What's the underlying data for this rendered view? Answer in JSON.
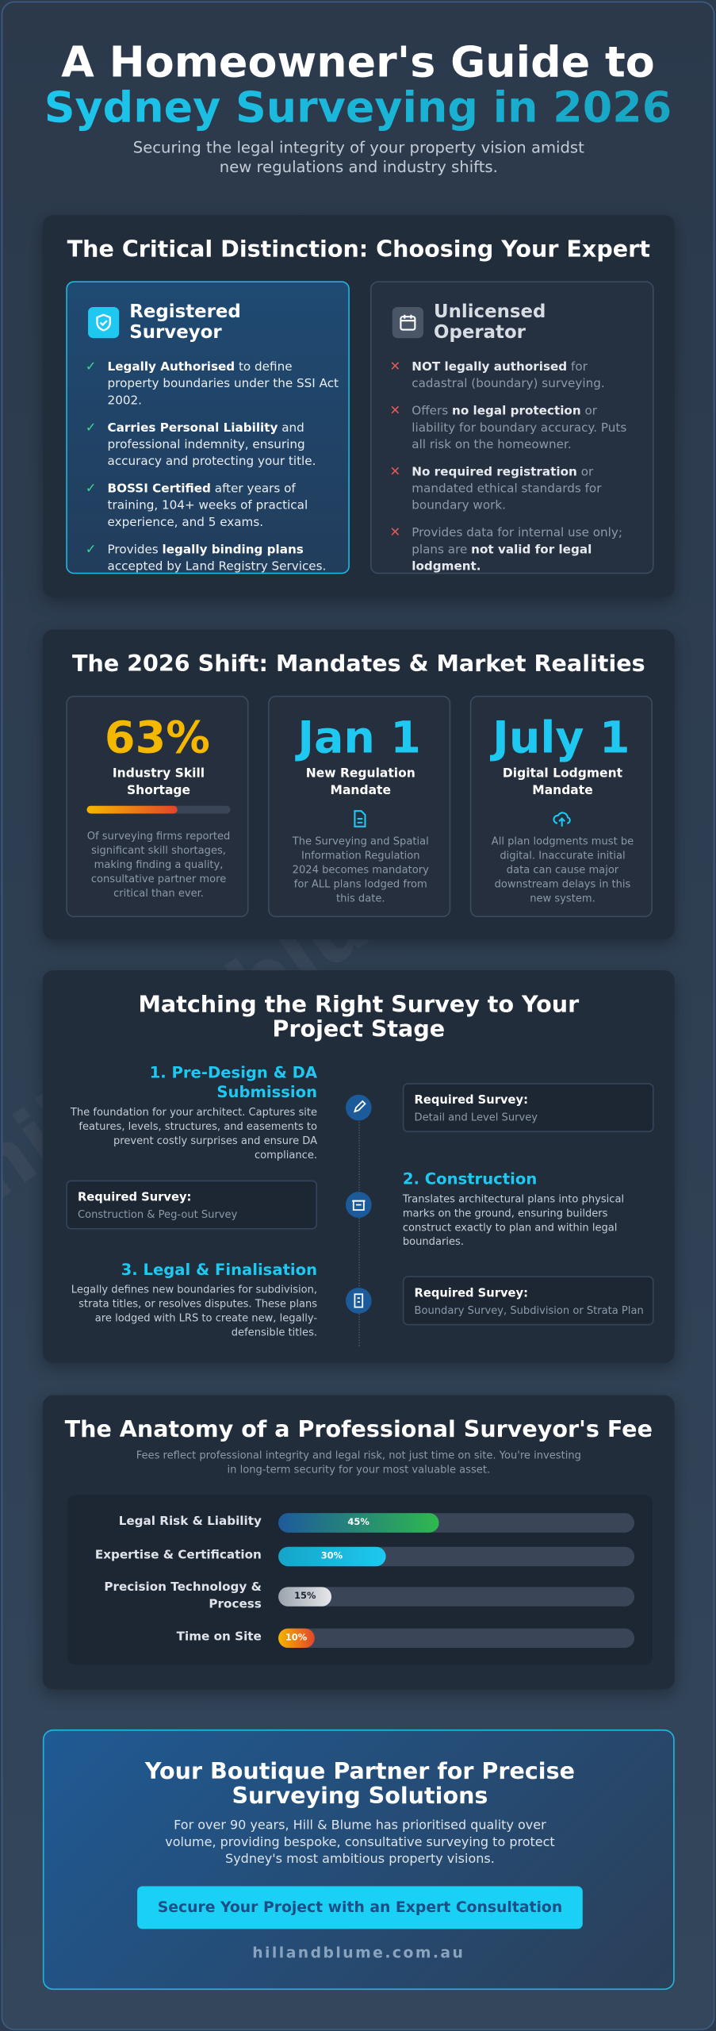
{
  "header": {
    "title_line1": "A Homeowner's Guide to",
    "title_line2": "Sydney Surveying in 2026",
    "subtitle": "Securing the legal integrity of your property vision amidst new regulations and industry shifts."
  },
  "watermark": "hillandblume.com",
  "distinction": {
    "title": "The Critical Distinction: Choosing Your Expert",
    "registered": {
      "title": "Registered Surveyor",
      "items": [
        [
          {
            "b": "Legally Authorised"
          },
          {
            "t": " to define property boundaries under the SSI Act 2002."
          }
        ],
        [
          {
            "b": "Carries Personal Liability"
          },
          {
            "t": " and professional indemnity, ensuring accuracy and protecting your title."
          }
        ],
        [
          {
            "b": "BOSSI Certified"
          },
          {
            "t": " after years of training, 104+ weeks of practical experience, and 5 exams."
          }
        ],
        [
          {
            "t": "Provides "
          },
          {
            "b": "legally binding plans"
          },
          {
            "t": " accepted by Land Registry Services."
          }
        ]
      ]
    },
    "unlicensed": {
      "title": "Unlicensed Operator",
      "items": [
        [
          {
            "b": "NOT legally authorised"
          },
          {
            "t": " for cadastral (boundary) surveying."
          }
        ],
        [
          {
            "t": "Offers "
          },
          {
            "b": "no legal protection"
          },
          {
            "t": " or liability for boundary accuracy. Puts all risk on the homeowner."
          }
        ],
        [
          {
            "b": "No required registration"
          },
          {
            "t": " or mandated ethical standards for boundary work."
          }
        ],
        [
          {
            "t": "Provides data for internal use only; plans are "
          },
          {
            "b": "not valid for legal lodgment."
          }
        ]
      ]
    }
  },
  "shift": {
    "title": "The 2026 Shift: Mandates & Market Realities",
    "cards": [
      {
        "value": 63,
        "value_label": "63%",
        "xlim": [
          0,
          100
        ],
        "color": "#f5b800",
        "label": "Industry Skill Shortage",
        "text": "Of surveying firms reported significant skill shortages, making finding a quality, consultative partner more critical than ever."
      },
      {
        "stat": "Jan 1",
        "color": "#1ec8f0",
        "label": "New Regulation Mandate",
        "text": "The Surveying and Spatial Information Regulation 2024 becomes mandatory for ALL plans lodged from this date."
      },
      {
        "stat": "July 1",
        "color": "#1ec8f0",
        "label": "Digital Lodgment Mandate",
        "text": "All plan lodgments must be digital. Inaccurate initial data can cause major downstream delays in this new system."
      }
    ]
  },
  "stages": {
    "title": "Matching the Right Survey to Your Project Stage",
    "items": [
      {
        "title": "1. Pre-Design & DA Submission",
        "text": "The foundation for your architect. Captures site features, levels, structures, and easements to prevent costly surprises and ensure DA compliance.",
        "survey_label": "Required Survey:",
        "survey": "Detail and Level Survey"
      },
      {
        "title": "2. Construction",
        "text": "Translates architectural plans into physical marks on the ground, ensuring builders construct exactly to plan and within legal boundaries.",
        "survey_label": "Required Survey:",
        "survey": "Construction & Peg-out Survey"
      },
      {
        "title": "3. Legal & Finalisation",
        "text": "Legally defines new boundaries for subdivision, strata titles, or resolves disputes. These plans are lodged with LRS to create new, legally-defensible titles.",
        "survey_label": "Required Survey:",
        "survey": "Boundary Survey, Subdivision or Strata Plan"
      }
    ]
  },
  "fees": {
    "title": "The Anatomy of a Professional Surveyor's Fee",
    "subtitle": "Fees reflect professional integrity and legal risk, not just time on site. You're investing in long-term security for your most valuable asset.",
    "xlim": [
      0,
      100
    ],
    "rows": [
      {
        "label": "Legal Risk & Liability",
        "value": 45,
        "value_label": "45%",
        "colors": [
          "#1d5a9c",
          "#2fb84f"
        ]
      },
      {
        "label": "Expertise & Certification",
        "value": 30,
        "value_label": "30%",
        "colors": [
          "#15a4c8",
          "#1ec8f0"
        ]
      },
      {
        "label": "Precision Technology & Process",
        "value": 15,
        "value_label": "15%",
        "colors": [
          "#9aa3ad",
          "#e6e8ea"
        ]
      },
      {
        "label": "Time on Site",
        "value": 10,
        "value_label": "10%",
        "colors": [
          "#f5b400",
          "#e2452b"
        ]
      }
    ]
  },
  "cta": {
    "title": "Your Boutique Partner for Precise Surveying Solutions",
    "text": "For over 90 years, Hill & Blume has prioritised quality over volume, providing bespoke, consultative surveying to protect Sydney's most ambitious property visions.",
    "button": "Secure Your Project with an Expert Consultation",
    "url": "hillandblume.com.au"
  }
}
